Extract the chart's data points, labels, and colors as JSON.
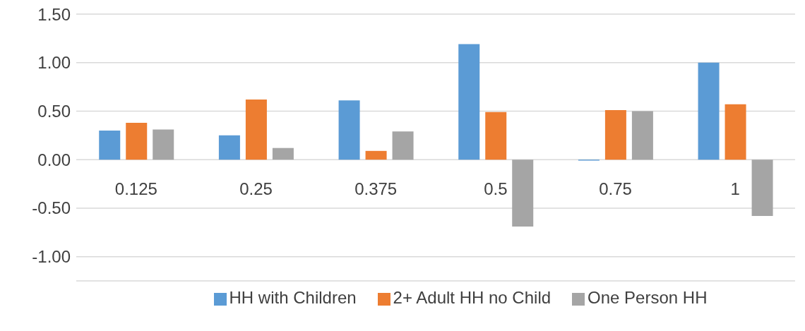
{
  "chart_data": {
    "type": "bar",
    "categories": [
      "0.125",
      "0.25",
      "0.375",
      "0.5",
      "0.75",
      "1"
    ],
    "series": [
      {
        "name": "HH with Children",
        "color": "#5b9bd5",
        "values": [
          0.3,
          0.25,
          0.61,
          1.19,
          -0.01,
          1.0
        ]
      },
      {
        "name": "2+ Adult HH no Child",
        "color": "#ed7d31",
        "values": [
          0.38,
          0.62,
          0.09,
          0.49,
          0.51,
          0.57
        ]
      },
      {
        "name": "One Person HH",
        "color": "#a5a5a5",
        "values": [
          0.31,
          0.12,
          0.29,
          -0.69,
          0.5,
          -0.58
        ]
      }
    ],
    "ylim": [
      -1.25,
      1.5
    ],
    "yticks": [
      {
        "value": -1,
        "label": "-1.00"
      },
      {
        "value": -0.5,
        "label": "-0.50"
      },
      {
        "value": 0,
        "label": "0.00"
      },
      {
        "value": 0.5,
        "label": "0.50"
      },
      {
        "value": 1,
        "label": "1.00"
      },
      {
        "value": 1.5,
        "label": "1.50"
      }
    ],
    "grid": "y",
    "legend": "bottom"
  }
}
